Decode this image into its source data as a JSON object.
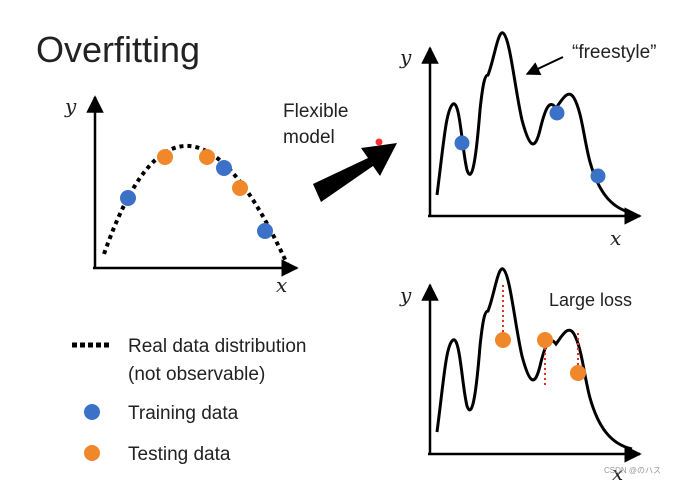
{
  "slide": {
    "title": "Overfitting",
    "arrow_label_line1": "Flexible",
    "arrow_label_line2": "model",
    "freestyle_label": "“freestyle”",
    "large_loss_label": "Large loss",
    "watermark": "CSDN @のハス",
    "legend": {
      "real_line1": "Real data distribution",
      "real_line2": "(not observable)",
      "training": "Training data",
      "testing": "Testing data"
    }
  },
  "plots": {
    "left": {
      "x_label": "x",
      "y_label": "y"
    },
    "top_right": {
      "x_label": "x",
      "y_label": "y"
    },
    "bottom_right": {
      "x_label": "x",
      "y_label": "y"
    }
  },
  "colors": {
    "training": "#3b72c8",
    "testing": "#f0872a",
    "curve": "#000000",
    "loss_line": "#e03020",
    "text": "#222222"
  }
}
